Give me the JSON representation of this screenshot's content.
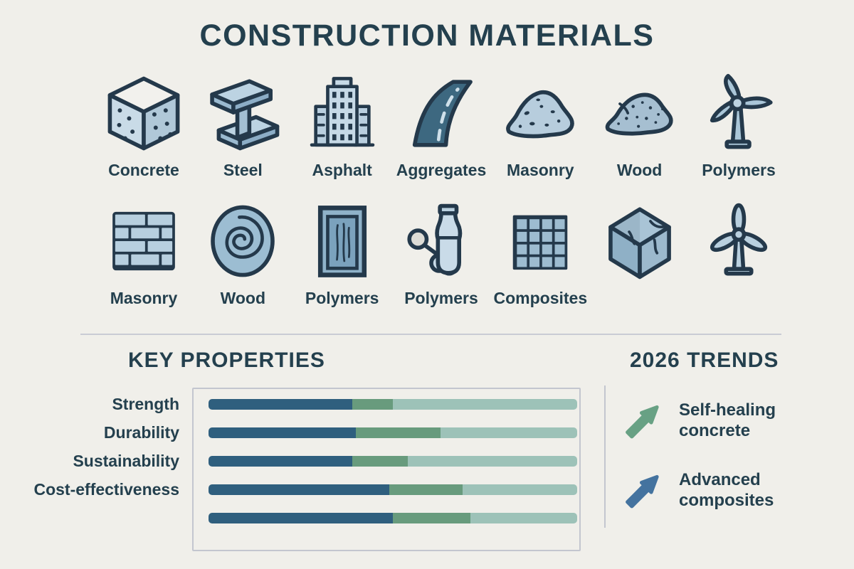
{
  "title": "CONSTRUCTION MATERIALS",
  "materials": {
    "row1": [
      {
        "label": "Concrete",
        "icon": "concrete-cube"
      },
      {
        "label": "Steel",
        "icon": "steel-ibeam"
      },
      {
        "label": "Asphalt",
        "icon": "building"
      },
      {
        "label": "Aggregates",
        "icon": "curved-road"
      },
      {
        "label": "Masonry",
        "icon": "gravel-pile"
      },
      {
        "label": "Wood",
        "icon": "gravel-pile-2"
      },
      {
        "label": "Polymers",
        "icon": "wind-turbine-side"
      }
    ],
    "row2": [
      {
        "label": "Masonry",
        "icon": "brick-wall"
      },
      {
        "label": "Wood",
        "icon": "log-rings"
      },
      {
        "label": "Polymers",
        "icon": "door-panel"
      },
      {
        "label": "Polymers",
        "icon": "plastic-bottle"
      },
      {
        "label": "Composites",
        "icon": "tile-grid"
      },
      {
        "label": "",
        "icon": "cracked-cube"
      },
      {
        "label": "",
        "icon": "wind-turbine-front"
      }
    ]
  },
  "properties": {
    "heading": "KEY PROPERTIES",
    "segment_colors": [
      "#2f5f7e",
      "#689b7d",
      "#9dc2b8"
    ],
    "bars": [
      {
        "label": "Strength",
        "segments": [
          39,
          11,
          50
        ]
      },
      {
        "label": "Durability",
        "segments": [
          40,
          23,
          37
        ]
      },
      {
        "label": "Sustainability",
        "segments": [
          39,
          15,
          46
        ]
      },
      {
        "label": "Cost-effectiveness",
        "segments": [
          49,
          20,
          31
        ]
      },
      {
        "label": "",
        "segments": [
          50,
          21,
          29
        ]
      }
    ]
  },
  "trends": {
    "heading": "2026 TRENDS",
    "items": [
      {
        "lines": [
          "Self-healing",
          "concrete"
        ],
        "arrow_color": "#68a184",
        "arrow_icon": "trend-up-arrow"
      },
      {
        "lines": [
          "Advanced",
          "composites"
        ],
        "arrow_color": "#44739f",
        "arrow_icon": "trend-up-arrow"
      }
    ]
  },
  "colors": {
    "background": "#f0efea",
    "text": "#24404e",
    "icon_outline": "#24394b",
    "icon_fill_light": "#c9dbe7",
    "icon_fill_mid": "#aac6d8",
    "road_fill": "#3d6880",
    "divider": "#c9cbd4"
  },
  "chart_data": {
    "type": "bar",
    "subtype": "horizontal-stacked",
    "title": "KEY PROPERTIES",
    "categories": [
      "Strength",
      "Durability",
      "Sustainability",
      "Cost-effectiveness",
      ""
    ],
    "series": [
      {
        "name": "segment-dark-blue",
        "color": "#2f5f7e",
        "values": [
          39,
          40,
          39,
          49,
          50
        ]
      },
      {
        "name": "segment-green",
        "color": "#689b7d",
        "values": [
          11,
          23,
          15,
          20,
          21
        ]
      },
      {
        "name": "segment-sage",
        "color": "#9dc2b8",
        "values": [
          50,
          37,
          46,
          31,
          29
        ]
      }
    ],
    "xlabel": "",
    "ylabel": "",
    "xlim_percent": [
      0,
      100
    ],
    "grid": false,
    "legend": false
  }
}
